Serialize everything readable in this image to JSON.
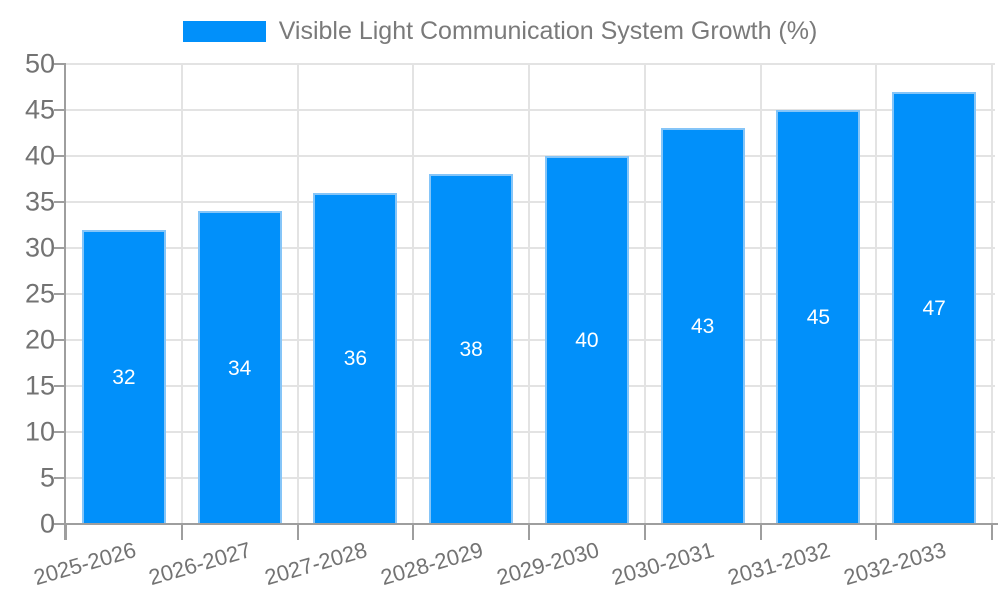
{
  "legend": {
    "label": "Visible Light Communication System Growth (%)"
  },
  "chart_data": {
    "type": "bar",
    "title": "Visible Light Communication System Growth (%)",
    "categories": [
      "2025-2026",
      "2026-2027",
      "2027-2028",
      "2028-2029",
      "2029-2030",
      "2030-2031",
      "2031-2032",
      "2032-2033"
    ],
    "values": [
      32,
      34,
      36,
      38,
      40,
      43,
      45,
      47
    ],
    "bar_value_labels": [
      "32",
      "34",
      "36",
      "38",
      "40",
      "43",
      "45",
      "47"
    ],
    "xlabel": "",
    "ylabel": "",
    "ylim": [
      0,
      50
    ],
    "ytick_step": 5,
    "yticks": [
      0,
      5,
      10,
      15,
      20,
      25,
      30,
      35,
      40,
      45,
      50
    ],
    "grid": true,
    "legend_position": "top-center",
    "x_label_rotation_deg": -16,
    "colors": {
      "bar_fill": "#0190fa",
      "bar_border": "#85c5f8",
      "bar_value_text": "#ffffff",
      "gridline": "#e3e3e3",
      "axis_line": "#9e9e9e",
      "tick_label_text": "#737373",
      "legend_text": "#7a7a7a",
      "background": "#ffffff"
    }
  }
}
